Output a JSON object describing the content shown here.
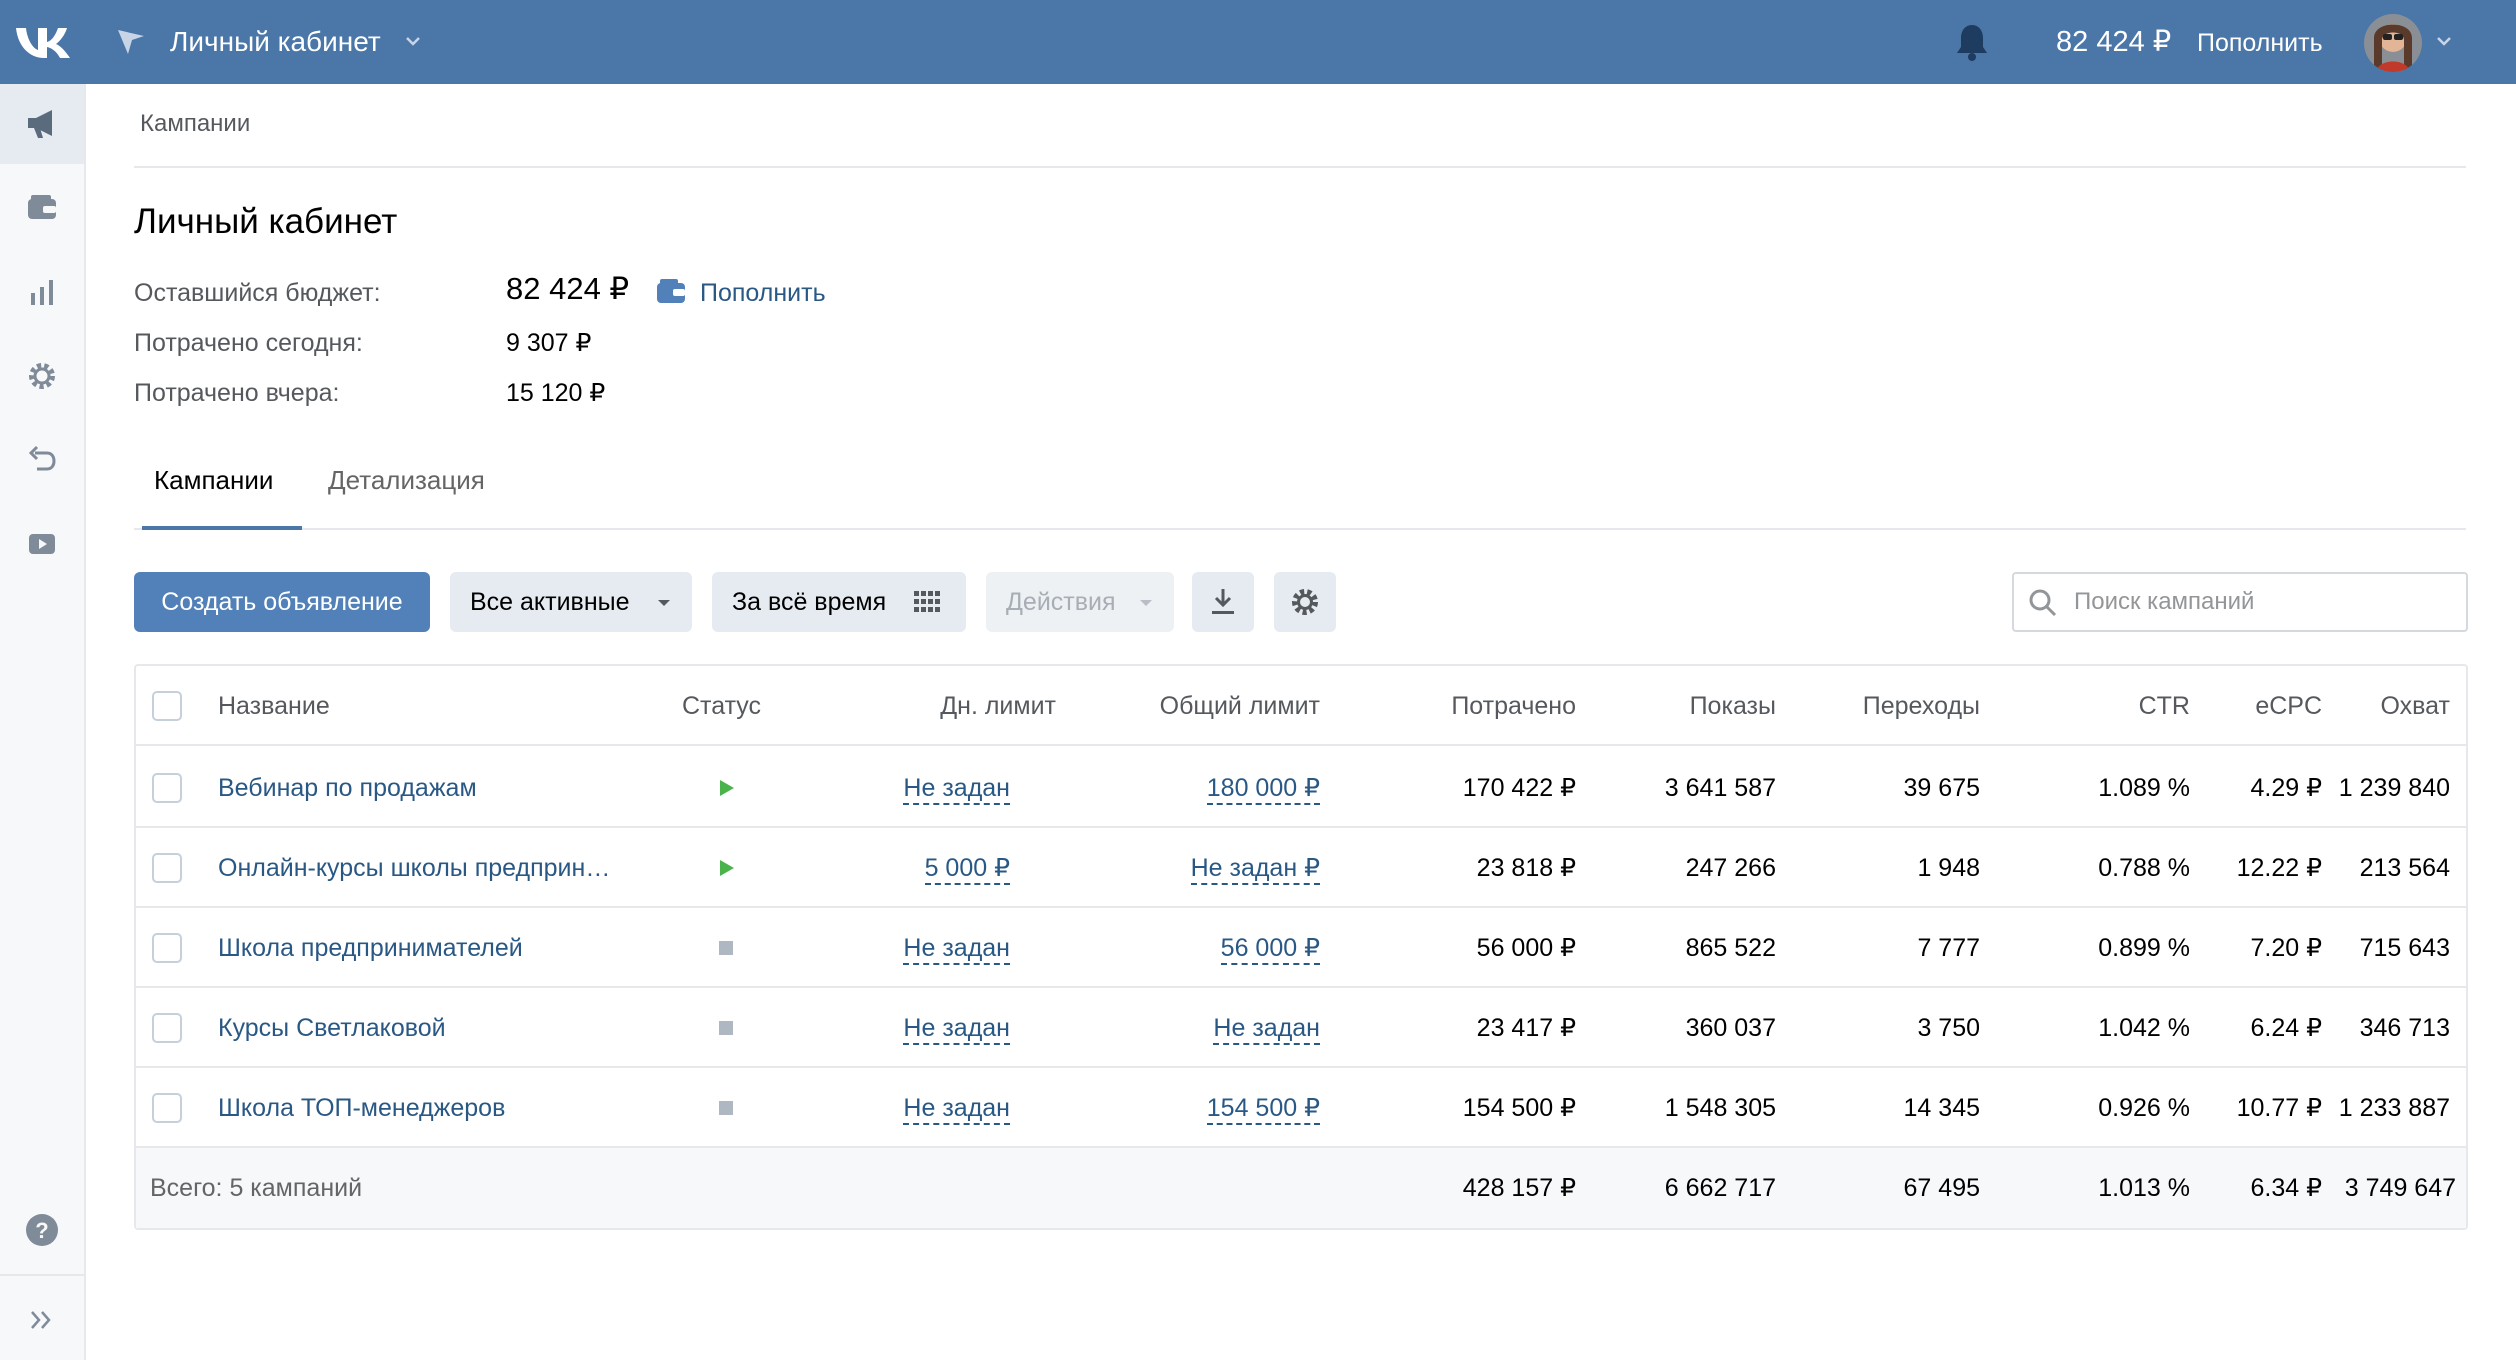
{
  "header": {
    "title": "Личный кабинет",
    "balance": "82 424 ₽",
    "topup_label": "Пополнить",
    "brand_color": "#4a76a8"
  },
  "sidebar": {
    "items": [
      {
        "icon": "megaphone-icon",
        "active": true
      },
      {
        "icon": "wallet-icon"
      },
      {
        "icon": "stats-icon"
      },
      {
        "icon": "gear-icon"
      },
      {
        "icon": "undo-icon"
      },
      {
        "icon": "video-icon"
      },
      {
        "icon": "help-icon"
      },
      {
        "icon": "expand-icon"
      }
    ]
  },
  "breadcrumb": "Кампании",
  "page_title": "Личный кабинет",
  "info": {
    "budget_label": "Оставшийся бюджет:",
    "budget_value": "82 424 ₽",
    "budget_topup": "Пополнить",
    "today_label": "Потрачено сегодня:",
    "today_value": "9 307 ₽",
    "yesterday_label": "Потрачено вчера:",
    "yesterday_value": "15 120 ₽"
  },
  "tabs": [
    {
      "label": "Кампании",
      "active": true
    },
    {
      "label": "Детализация",
      "active": false
    }
  ],
  "toolbar": {
    "create_label": "Создать объявление",
    "filter_label": "Все активные",
    "period_label": "За всё время",
    "actions_label": "Действия",
    "search_placeholder": "Поиск кампаний"
  },
  "table": {
    "columns": [
      "Название",
      "Статус",
      "Дн. лимит",
      "Общий лимит",
      "Потрачено",
      "Показы",
      "Переходы",
      "CTR",
      "eCPC",
      "Охват"
    ],
    "rows": [
      {
        "name": "Вебинар по продажам",
        "status": "active",
        "day_limit": "Не задан",
        "total_limit": "180 000 ₽",
        "spent": "170 422 ₽",
        "impressions": "3 641 587",
        "clicks": "39 675",
        "ctr": "1.089 %",
        "ecpc": "4.29 ₽",
        "reach": "1 239 840"
      },
      {
        "name": "Онлайн-курсы школы предприн…",
        "status": "active",
        "day_limit": "5 000 ₽",
        "total_limit": "Не задан ₽",
        "spent": "23 818 ₽",
        "impressions": "247 266",
        "clicks": "1 948",
        "ctr": "0.788 %",
        "ecpc": "12.22 ₽",
        "reach": "213 564"
      },
      {
        "name": "Школа предпринимателей",
        "status": "stopped",
        "day_limit": "Не задан",
        "total_limit": "56 000 ₽",
        "spent": "56 000 ₽",
        "impressions": "865 522",
        "clicks": "7 777",
        "ctr": "0.899 %",
        "ecpc": "7.20 ₽",
        "reach": "715 643"
      },
      {
        "name": "Курсы Светлаковой",
        "status": "stopped",
        "day_limit": "Не задан",
        "total_limit": "Не задан",
        "spent": "23 417 ₽",
        "impressions": "360 037",
        "clicks": "3 750",
        "ctr": "1.042 %",
        "ecpc": "6.24 ₽",
        "reach": "346 713"
      },
      {
        "name": "Школа ТОП-менеджеров",
        "status": "stopped",
        "day_limit": "Не задан",
        "total_limit": "154 500 ₽",
        "spent": "154 500 ₽",
        "impressions": "1 548 305",
        "clicks": "14 345",
        "ctr": "0.926 %",
        "ecpc": "10.77 ₽",
        "reach": "1 233 887"
      }
    ],
    "total": {
      "label": "Всего: 5 кампаний",
      "spent": "428 157 ₽",
      "impressions": "6 662 717",
      "clicks": "67 495",
      "ctr": "1.013 %",
      "ecpc": "6.34 ₽",
      "reach": "3 749 647"
    }
  },
  "colors": {
    "link": "#2a5885",
    "button": "#5181b8",
    "status_active": "#4bb34b",
    "status_stopped": "#aeb7c2"
  }
}
